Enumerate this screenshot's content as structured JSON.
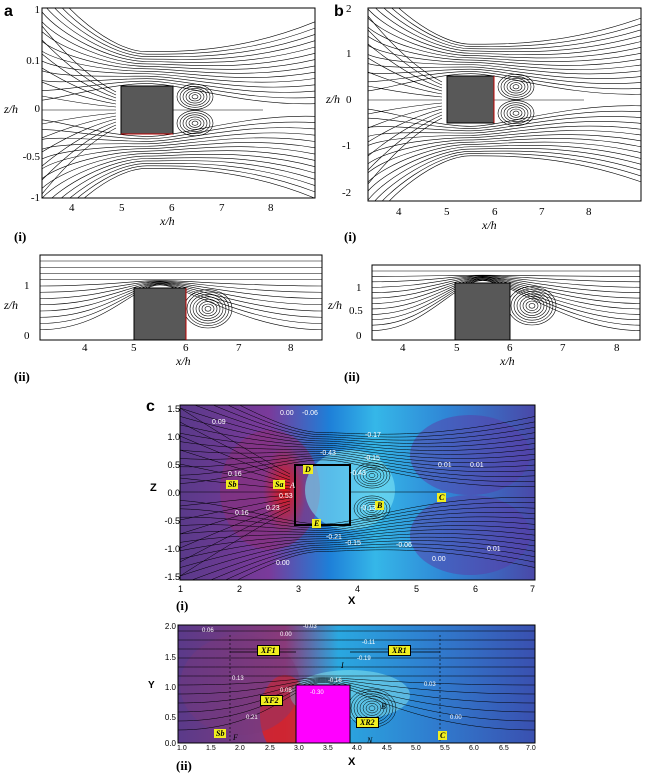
{
  "panel_a": {
    "label": "a",
    "top": {
      "sub": "(i)",
      "xlabel": "x/h",
      "ylabel": "z/h",
      "xticks": [
        "4",
        "5",
        "6",
        "7",
        "8"
      ],
      "yticks": [
        "1",
        "0.1",
        "0",
        "-0.5",
        "-1"
      ]
    },
    "bottom": {
      "sub": "(ii)",
      "xlabel": "x/h",
      "ylabel": "z/h",
      "xticks": [
        "4",
        "5",
        "6",
        "7",
        "8"
      ],
      "yticks": [
        "1",
        "0"
      ]
    }
  },
  "panel_b": {
    "label": "b",
    "top": {
      "sub": "(i)",
      "xlabel": "x/h",
      "ylabel": "z/h",
      "xticks": [
        "4",
        "5",
        "6",
        "7",
        "8"
      ],
      "yticks": [
        "2",
        "1",
        "0",
        "-1",
        "-2"
      ]
    },
    "bottom": {
      "sub": "(ii)",
      "xlabel": "x/h",
      "ylabel": "z/h",
      "xticks": [
        "4",
        "5",
        "6",
        "7",
        "8"
      ],
      "yticks": [
        "1",
        "0.5",
        "0"
      ]
    }
  },
  "panel_c": {
    "label": "c",
    "top": {
      "sub": "(i)",
      "xlabel": "X",
      "ylabel": "Z",
      "xticks": [
        "1",
        "2",
        "3",
        "4",
        "5",
        "6",
        "7"
      ],
      "yticks": [
        "1.5",
        "1.0",
        "0.5",
        "0.0",
        "-0.5",
        "-1.0",
        "-1.5"
      ],
      "points": [
        "Sb",
        "Sa",
        "D",
        "E",
        "B",
        "C",
        "A"
      ],
      "contours": [
        "0.09",
        "0.00",
        "-0.06",
        "-0.17",
        "0.16",
        "-0.43",
        "-0.43",
        "-0.15",
        "0.53",
        "0.23",
        "0.16",
        "-0.21",
        "-0.15",
        "0.01",
        "0.01",
        "0.00",
        "-0.06",
        "0.00",
        "0.01",
        "-0.13"
      ]
    },
    "bottom": {
      "sub": "(ii)",
      "xlabel": "X",
      "ylabel": "Y",
      "xticks": [
        "1.0",
        "1.5",
        "2.0",
        "2.5",
        "3.0",
        "3.5",
        "4.0",
        "4.5",
        "5.0",
        "5.5",
        "6.0",
        "6.5",
        "7.0"
      ],
      "yticks": [
        "2.0",
        "1.5",
        "1.0",
        "0.5",
        "0.0"
      ],
      "boxes": [
        "XF1",
        "XR1",
        "XF2",
        "XR2"
      ],
      "points": [
        "Sb",
        "C",
        "I",
        "B",
        "N",
        "F"
      ],
      "contours": [
        "0.06",
        "0.00",
        "-0.03",
        "-0.11",
        "-0.19",
        "-0.16",
        "0.13",
        "0.08",
        "0.21",
        "-0.30",
        "0.03",
        "0.00"
      ]
    }
  }
}
